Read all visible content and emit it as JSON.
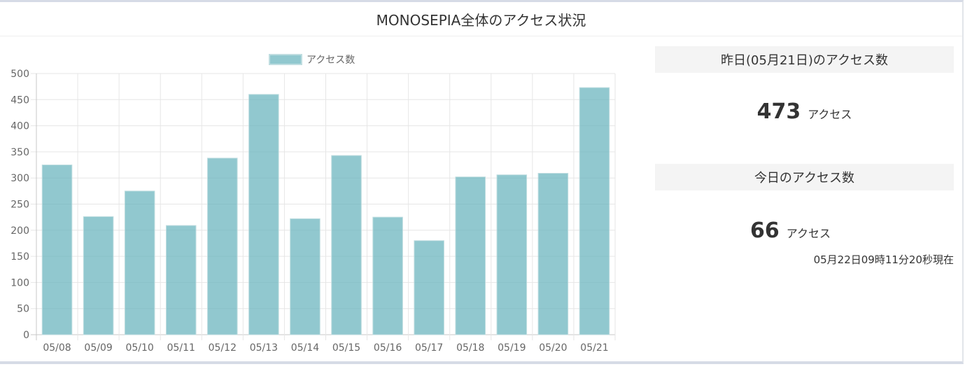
{
  "header": {
    "title": "MONOSEPIA全体のアクセス状況"
  },
  "legend": {
    "label": "アクセス数"
  },
  "chart_data": {
    "type": "bar",
    "categories": [
      "05/08",
      "05/09",
      "05/10",
      "05/11",
      "05/12",
      "05/13",
      "05/14",
      "05/15",
      "05/16",
      "05/17",
      "05/18",
      "05/19",
      "05/20",
      "05/21"
    ],
    "series": [
      {
        "name": "アクセス数",
        "values": [
          325,
          226,
          275,
          209,
          338,
          460,
          222,
          343,
          225,
          180,
          302,
          306,
          309,
          473
        ]
      }
    ],
    "ylim": [
      0,
      500
    ],
    "yticks": [
      0,
      50,
      100,
      150,
      200,
      250,
      300,
      350,
      400,
      450,
      500
    ],
    "grid": true,
    "legend_position": "top",
    "bar_color": "#66b3bc"
  },
  "yesterday": {
    "heading": "昨日(05月21日)のアクセス数",
    "count": "473",
    "unit": "アクセス"
  },
  "today": {
    "heading": "今日のアクセス数",
    "count": "66",
    "unit": "アクセス",
    "timestamp": "05月22日09時11分20秒現在"
  }
}
